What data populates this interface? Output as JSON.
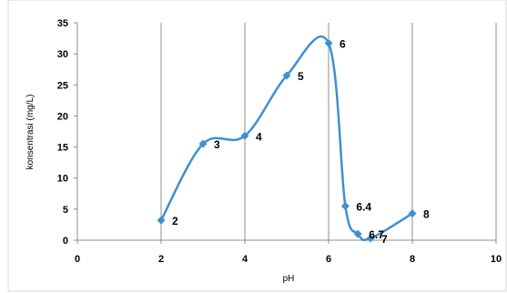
{
  "chart_data": {
    "type": "scatter",
    "title": "",
    "xlabel": "pH",
    "ylabel": "konsentrasi (mg/L)",
    "xlim": [
      0,
      10
    ],
    "ylim": [
      0,
      35
    ],
    "x_ticks": [
      "0",
      "2",
      "4",
      "6",
      "8",
      "10"
    ],
    "y_ticks": [
      "0",
      "5",
      "10",
      "15",
      "20",
      "25",
      "30",
      "35"
    ],
    "grid": "vertical",
    "legend": "none",
    "smooth_line": true,
    "series_color": "#3F8FD2",
    "points": [
      {
        "x": 2,
        "y": 3.2,
        "label": "2"
      },
      {
        "x": 3,
        "y": 15.5,
        "label": "3"
      },
      {
        "x": 4,
        "y": 16.8,
        "label": "4"
      },
      {
        "x": 5,
        "y": 26.5,
        "label": "5"
      },
      {
        "x": 6,
        "y": 31.7,
        "label": "6"
      },
      {
        "x": 6.4,
        "y": 5.5,
        "label": "6.4"
      },
      {
        "x": 6.7,
        "y": 1.0,
        "label": "6.7"
      },
      {
        "x": 7,
        "y": 0.3,
        "label": "7"
      },
      {
        "x": 8,
        "y": 4.3,
        "label": "8"
      }
    ]
  }
}
